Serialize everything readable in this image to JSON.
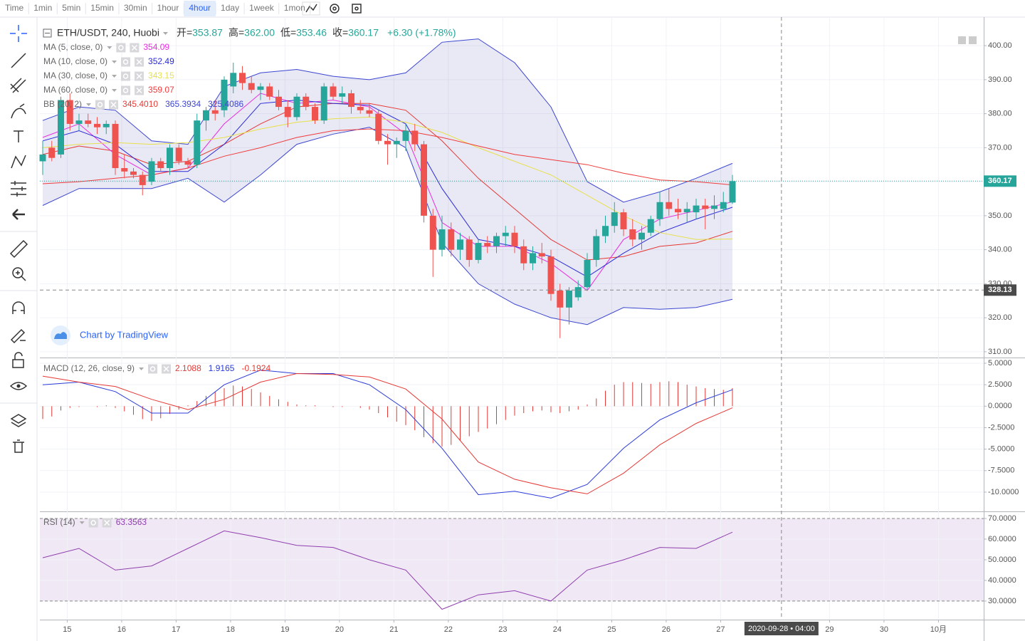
{
  "toolbar": {
    "intervals": [
      "Time",
      "1min",
      "5min",
      "15min",
      "30min",
      "1hour",
      "4hour",
      "1day",
      "1week",
      "1mon"
    ],
    "active": 6
  },
  "chart_data": {
    "type": "candlestick",
    "symbol": "ETH/USDT, 240, Huobi",
    "header": [
      {
        "label": "开=",
        "value": "353.87"
      },
      {
        "label": "高=",
        "value": "362.00"
      },
      {
        "label": "低=",
        "value": "353.46"
      },
      {
        "label": "收=",
        "value": "360.17"
      }
    ],
    "change": "+6.30 (+1.78%)",
    "up_color": "#26a69a",
    "down_color": "#ef5350",
    "open": [
      366,
      370,
      368,
      384,
      377,
      378,
      377,
      376,
      377,
      364,
      363,
      362,
      360,
      366,
      364,
      370,
      366,
      365,
      378,
      381,
      381,
      388,
      392,
      389,
      387,
      388,
      385,
      382,
      379,
      385,
      382,
      378,
      388,
      385,
      386,
      382,
      381,
      380,
      372,
      371,
      372,
      375,
      371,
      350,
      340,
      346,
      340,
      343,
      337,
      342,
      341,
      344,
      345,
      341,
      336,
      339,
      338,
      328,
      323,
      326,
      329,
      337,
      344,
      347,
      351,
      346,
      343,
      345,
      349,
      354,
      352,
      351,
      351,
      353,
      352,
      352,
      353.87
    ],
    "high": [
      372,
      372,
      385,
      386,
      380,
      380,
      379,
      378,
      378,
      368,
      364,
      363,
      367,
      367,
      371,
      371,
      367,
      380,
      382,
      384,
      391,
      395,
      394,
      391,
      389,
      389,
      387,
      384,
      386,
      386,
      383,
      389,
      389,
      388,
      387,
      384,
      383,
      381,
      374,
      373,
      377,
      377,
      372,
      352,
      350,
      348,
      345,
      344,
      343,
      344,
      345,
      347,
      347,
      343,
      341,
      342,
      340,
      330,
      329,
      331,
      339,
      346,
      350,
      354,
      352,
      349,
      347,
      350,
      357,
      358,
      355,
      354,
      355,
      355,
      356,
      357,
      362
    ],
    "low": [
      362,
      366,
      367,
      375,
      375,
      376,
      374,
      374,
      362,
      361,
      361,
      356,
      359,
      363,
      362,
      365,
      364,
      364,
      375,
      378,
      379,
      386,
      387,
      386,
      384,
      384,
      381,
      376,
      378,
      381,
      377,
      377,
      384,
      383,
      380,
      380,
      379,
      371,
      365,
      367,
      369,
      369,
      348,
      332,
      338,
      338,
      337,
      335,
      336,
      339,
      339,
      341,
      339,
      334,
      334,
      336,
      325,
      314,
      318,
      325,
      328,
      335,
      342,
      345,
      344,
      341,
      340,
      344,
      347,
      350,
      349,
      348,
      349,
      346,
      349,
      351,
      353.46
    ],
    "close": [
      368,
      367,
      384,
      377,
      378,
      377,
      376,
      377,
      364,
      363,
      362,
      359,
      366,
      364,
      370,
      366,
      365,
      378,
      381,
      380,
      390,
      392,
      389,
      387,
      388,
      385,
      382,
      379,
      385,
      382,
      378,
      388,
      385,
      386,
      382,
      381,
      380,
      372,
      371,
      372,
      375,
      371,
      350,
      340,
      346,
      340,
      343,
      337,
      342,
      341,
      344,
      345,
      341,
      336,
      339,
      338,
      327,
      323,
      328,
      329,
      337,
      344,
      347,
      351,
      346,
      343,
      345,
      349,
      354,
      352,
      351,
      352,
      353,
      352,
      353,
      354,
      360.17
    ],
    "ylim": [
      308.3,
      408.4
    ],
    "yticks": [
      {
        "value": 400,
        "label": "400.00"
      },
      {
        "value": 390,
        "label": "390.00"
      },
      {
        "value": 380,
        "label": "380.00"
      },
      {
        "value": 370,
        "label": "370.00"
      },
      {
        "value": 360,
        "label": "360.00"
      },
      {
        "value": 350,
        "label": "350.00"
      },
      {
        "value": 340,
        "label": "340.00"
      },
      {
        "value": 330,
        "label": "330.00"
      },
      {
        "value": 320,
        "label": "320.00"
      },
      {
        "value": 310,
        "label": "310.00"
      }
    ],
    "xticks": [
      {
        "value": 2.7,
        "label": "15"
      },
      {
        "value": 8.7,
        "label": "16"
      },
      {
        "value": 14.7,
        "label": "17"
      },
      {
        "value": 20.7,
        "label": "18"
      },
      {
        "value": 26.7,
        "label": "19"
      },
      {
        "value": 32.7,
        "label": "20"
      },
      {
        "value": 38.7,
        "label": "21"
      },
      {
        "value": 44.7,
        "label": "22"
      },
      {
        "value": 50.7,
        "label": "23"
      },
      {
        "value": 56.7,
        "label": "24"
      },
      {
        "value": 62.7,
        "label": "25"
      },
      {
        "value": 68.7,
        "label": "26"
      },
      {
        "value": 74.7,
        "label": "27"
      },
      {
        "value": 86.7,
        "label": "29"
      },
      {
        "value": 92.7,
        "label": "30"
      },
      {
        "value": 98.7,
        "label": "10月"
      }
    ],
    "grid": true,
    "ma": [
      {
        "name": "MA (5, close, 0)",
        "color": "#e62ee0",
        "x": [
          0,
          4,
          8,
          12,
          16,
          20,
          24,
          28,
          32,
          36,
          40,
          44,
          48,
          52,
          56,
          60,
          64,
          68,
          72,
          76
        ],
        "values": [
          373,
          377,
          368,
          362,
          364,
          377,
          386,
          383,
          384,
          382,
          374,
          348,
          341,
          341,
          336,
          328,
          343,
          349,
          351.5,
          354.09
        ]
      },
      {
        "name": "MA (10, close, 0)",
        "color": "#2a2ad8",
        "x": [
          0,
          4,
          8,
          12,
          16,
          20,
          24,
          28,
          32,
          36,
          40,
          44,
          48,
          52,
          56,
          60,
          64,
          68,
          72,
          76
        ],
        "values": [
          372,
          375,
          371,
          363,
          363,
          371,
          383,
          384,
          383,
          382.5,
          377,
          358,
          343,
          341,
          338,
          332,
          339,
          345,
          349,
          352.49
        ]
      },
      {
        "name": "MA (30, close, 0)",
        "color": "#e8e04a",
        "x": [
          0,
          4,
          8,
          12,
          16,
          20,
          24,
          28,
          32,
          36,
          40,
          44,
          48,
          52,
          56,
          60,
          64,
          68,
          72,
          76
        ],
        "values": [
          370,
          371,
          371.5,
          371,
          371.5,
          373,
          375.5,
          377.5,
          378.5,
          379,
          377.5,
          374.5,
          370,
          366,
          362,
          356,
          350,
          345,
          343,
          343.15
        ]
      },
      {
        "name": "MA (60, close, 0)",
        "color": "#ef3b3b",
        "x": [
          0,
          4,
          8,
          12,
          16,
          20,
          24,
          28,
          32,
          36,
          40,
          44,
          48,
          52,
          56,
          60,
          64,
          68,
          72,
          76
        ],
        "values": [
          359.4,
          360,
          361,
          362,
          364,
          367.5,
          370,
          373,
          375,
          375.5,
          375,
          373,
          370.5,
          368,
          366.5,
          365,
          362.5,
          360.5,
          360,
          359.07
        ]
      }
    ],
    "bb": {
      "name": "BB (20, 2)",
      "band_color": "#2a2aa0",
      "lines": [
        {
          "color": "#e53935",
          "x": [
            0,
            4,
            8,
            12,
            16,
            20,
            24,
            28,
            32,
            36,
            40,
            44,
            48,
            52,
            56,
            60,
            64,
            68,
            72,
            76
          ],
          "values": [
            368,
            370.5,
            369,
            365,
            366,
            371,
            377,
            382,
            383,
            383,
            381,
            372,
            361,
            352,
            343,
            337,
            338,
            341,
            342,
            345.401
          ],
          "value_label": "345.4010"
        },
        {
          "color": "#3c46d0",
          "x": [
            0,
            4,
            8,
            12,
            16,
            20,
            24,
            28,
            32,
            36,
            40,
            44,
            48,
            52,
            56,
            60,
            64,
            68,
            72,
            76
          ],
          "values": [
            378,
            382,
            381,
            372,
            371,
            388,
            392,
            393,
            391,
            390,
            392,
            401,
            402,
            395,
            382,
            360,
            354,
            357,
            361,
            365.3934
          ],
          "value_label": "365.3934"
        },
        {
          "color": "#3c46d0",
          "x": [
            0,
            4,
            8,
            12,
            16,
            20,
            24,
            28,
            32,
            36,
            40,
            44,
            48,
            52,
            56,
            60,
            64,
            68,
            72,
            76
          ],
          "values": [
            353,
            358,
            358,
            358,
            361,
            354,
            362,
            371,
            374,
            376,
            370,
            342,
            330,
            324,
            320,
            318,
            323,
            322.5,
            323,
            325.4086
          ],
          "value_label": "325.4086"
        }
      ]
    },
    "macd": {
      "name": "MACD (12, 26, close, 9)",
      "ylim": [
        -12.24,
        5.58
      ],
      "yticks": [
        {
          "value": 5,
          "label": "5.0000"
        },
        {
          "value": 2.5,
          "label": "2.5000"
        },
        {
          "value": 0,
          "label": "0.0000"
        },
        {
          "value": -2.5,
          "label": "-2.5000"
        },
        {
          "value": -5,
          "label": "-5.0000"
        },
        {
          "value": -7.5,
          "label": "-7.5000"
        },
        {
          "value": -10,
          "label": "-10.0000"
        }
      ],
      "histogram": [
        -1.5,
        -1.2,
        -0.5,
        -0.2,
        -0.1,
        0,
        -0.1,
        0.1,
        -0.2,
        -0.6,
        -1.0,
        -1.5,
        -1.7,
        -1.4,
        -0.9,
        -0.4,
        0.1,
        0.6,
        1.2,
        1.7,
        2.1,
        2.4,
        2.3,
        2.0,
        1.6,
        1.2,
        0.8,
        0.5,
        0.2,
        0.1,
        0.1,
        0,
        -0.1,
        -0.1,
        0,
        -0.2,
        -0.4,
        -0.8,
        -1.3,
        -1.8,
        -2.2,
        -2.8,
        -3.6,
        -4.3,
        -4.7,
        -4.5,
        -4.0,
        -3.5,
        -3.0,
        -2.6,
        -2.1,
        -1.6,
        -1.1,
        -0.8,
        -0.6,
        -0.5,
        -0.7,
        -0.8,
        -0.6,
        -0.4,
        0.2,
        0.9,
        1.8,
        2.5,
        2.8,
        2.8,
        2.7,
        2.6,
        2.8,
        2.9,
        2.8,
        2.5,
        2.3,
        2.1,
        2.0,
        1.9,
        2.1088
      ],
      "hist_color": "#e53935",
      "lines": [
        {
          "color": "#2b3bd8",
          "x": [
            0,
            4,
            8,
            12,
            16,
            20,
            24,
            28,
            32,
            36,
            40,
            44,
            48,
            52,
            56,
            60,
            64,
            68,
            72,
            76
          ],
          "values": [
            2.5,
            2.8,
            1.7,
            -0.8,
            -0.8,
            2.5,
            4.2,
            3.8,
            3.8,
            2.5,
            -0.4,
            -4.9,
            -10.3,
            -9.9,
            -10.7,
            -9.1,
            -4.9,
            -1.6,
            0.4,
            1.9165
          ]
        },
        {
          "color": "#e53935",
          "x": [
            0,
            4,
            8,
            12,
            16,
            20,
            24,
            28,
            32,
            36,
            40,
            44,
            48,
            52,
            56,
            60,
            64,
            68,
            72,
            76
          ],
          "values": [
            3.5,
            2.8,
            2.3,
            0.8,
            -0.4,
            0.8,
            2.8,
            3.8,
            3.7,
            3.4,
            2.0,
            -1.5,
            -6.5,
            -8.5,
            -9.5,
            -10.2,
            -7.8,
            -4.5,
            -2.0,
            -0.1924
          ]
        }
      ]
    },
    "rsi": {
      "name": "RSI (14)",
      "color": "#8e3fae",
      "ylim": [
        21.0,
        73.1
      ],
      "band": [
        30,
        70
      ],
      "yticks": [
        {
          "value": 70,
          "label": "70.0000"
        },
        {
          "value": 60,
          "label": "60.0000"
        },
        {
          "value": 50,
          "label": "50.0000"
        },
        {
          "value": 40,
          "label": "40.0000"
        },
        {
          "value": 30,
          "label": "30.0000"
        }
      ],
      "x": [
        0,
        4,
        8,
        12,
        16,
        20,
        24,
        28,
        32,
        36,
        40,
        44,
        48,
        52,
        56,
        60,
        64,
        68,
        72,
        76
      ],
      "values": [
        51,
        55.5,
        45,
        47,
        55.5,
        64,
        60.7,
        57,
        56,
        50,
        45,
        26,
        33,
        35,
        30,
        45,
        50,
        56,
        55.5,
        63.3563
      ]
    },
    "crosshair": {
      "x": 81.4,
      "price": 328.13,
      "x_label": "2020-09-28 • 04:00"
    },
    "watermark": "Chart by TradingView"
  }
}
